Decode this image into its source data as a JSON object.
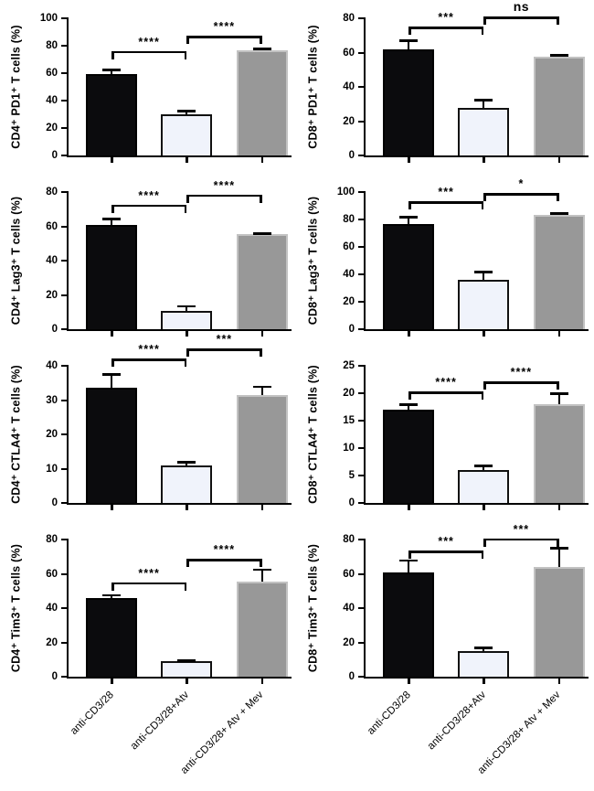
{
  "categories": [
    "anti-CD3/28",
    "anti-CD3/28+Atv",
    "anti-CD3/28+ Atv + Mev"
  ],
  "palette": {
    "black": {
      "fill": "#0b0b0d",
      "border": "#000000"
    },
    "white": {
      "fill": "#f0f3fb",
      "border": "#111111"
    },
    "gray": {
      "fill": "#989898",
      "border": "#c2c2c2"
    }
  },
  "bar_order": [
    "black",
    "white",
    "gray"
  ],
  "chart_data": [
    {
      "type": "bar",
      "ylabel": "CD4⁺ PD1⁺ T cells (%)",
      "ylim": [
        0,
        100
      ],
      "ystep": 20,
      "categories": [
        "anti-CD3/28",
        "anti-CD3/28+Atv",
        "anti-CD3/28+ Atv + Mev"
      ],
      "values": [
        59.5,
        30,
        77
      ],
      "errors": [
        3,
        2.5,
        1
      ],
      "significance": [
        {
          "between": [
            0,
            1
          ],
          "label": "****",
          "y": 75
        },
        {
          "between": [
            1,
            2
          ],
          "label": "****",
          "y": 86
        }
      ],
      "show_xlabels": false
    },
    {
      "type": "bar",
      "ylabel": "CD8⁺ PD1⁺ T cells (%)",
      "ylim": [
        0,
        80
      ],
      "ystep": 20,
      "categories": [
        "anti-CD3/28",
        "anti-CD3/28+Atv",
        "anti-CD3/28+ Atv + Mev"
      ],
      "values": [
        62,
        27.5,
        57.5
      ],
      "errors": [
        5,
        5,
        1
      ],
      "significance": [
        {
          "between": [
            0,
            1
          ],
          "label": "***",
          "y": 74
        },
        {
          "between": [
            1,
            2
          ],
          "label": "ns",
          "y": 80
        }
      ],
      "show_xlabels": false
    },
    {
      "type": "bar",
      "ylabel": "CD4⁺ Lag3⁺ T cells (%)",
      "ylim": [
        0,
        80
      ],
      "ystep": 20,
      "categories": [
        "anti-CD3/28",
        "anti-CD3/28+Atv",
        "anti-CD3/28+ Atv + Mev"
      ],
      "values": [
        61,
        10.5,
        55.5
      ],
      "errors": [
        3.5,
        3,
        0.5
      ],
      "significance": [
        {
          "between": [
            0,
            1
          ],
          "label": "****",
          "y": 71.5
        },
        {
          "between": [
            1,
            2
          ],
          "label": "****",
          "y": 77.5
        }
      ],
      "show_xlabels": false
    },
    {
      "type": "bar",
      "ylabel": "CD8⁺ Lag3⁺ T cells (%)",
      "ylim": [
        0,
        100
      ],
      "ystep": 20,
      "categories": [
        "anti-CD3/28",
        "anti-CD3/28+Atv",
        "anti-CD3/28+ Atv + Mev"
      ],
      "values": [
        77,
        36,
        83.5
      ],
      "errors": [
        5,
        6,
        1
      ],
      "significance": [
        {
          "between": [
            0,
            1
          ],
          "label": "***",
          "y": 92
        },
        {
          "between": [
            1,
            2
          ],
          "label": "*",
          "y": 98
        }
      ],
      "show_xlabels": false
    },
    {
      "type": "bar",
      "ylabel": "CD4⁺ CTLA4⁺ T cells (%)",
      "ylim": [
        0,
        40
      ],
      "ystep": 10,
      "categories": [
        "anti-CD3/28",
        "anti-CD3/28+Atv",
        "anti-CD3/28+ Atv + Mev"
      ],
      "values": [
        33.5,
        11,
        31.5
      ],
      "errors": [
        4,
        1,
        2.5
      ],
      "significance": [
        {
          "between": [
            0,
            1
          ],
          "label": "****",
          "y": 41.5
        },
        {
          "between": [
            1,
            2
          ],
          "label": "***",
          "y": 44.5
        }
      ],
      "show_xlabels": false
    },
    {
      "type": "bar",
      "ylabel": "CD8⁺ CTLA4⁺ T cells (%)",
      "ylim": [
        0,
        25
      ],
      "ystep": 5,
      "categories": [
        "anti-CD3/28",
        "anti-CD3/28+Atv",
        "anti-CD3/28+ Atv + Mev"
      ],
      "values": [
        17,
        6,
        18
      ],
      "errors": [
        1,
        0.8,
        2
      ],
      "significance": [
        {
          "between": [
            0,
            1
          ],
          "label": "****",
          "y": 20
        },
        {
          "between": [
            1,
            2
          ],
          "label": "****",
          "y": 21.8
        }
      ],
      "show_xlabels": false
    },
    {
      "type": "bar",
      "ylabel": "CD4⁺ Tim3⁺ T cells (%)",
      "ylim": [
        0,
        80
      ],
      "ystep": 20,
      "categories": [
        "anti-CD3/28",
        "anti-CD3/28+Atv",
        "anti-CD3/28+ Atv + Mev"
      ],
      "values": [
        46,
        9,
        55.5
      ],
      "errors": [
        1.5,
        0.5,
        7
      ],
      "significance": [
        {
          "between": [
            0,
            1
          ],
          "label": "****",
          "y": 54
        },
        {
          "between": [
            1,
            2
          ],
          "label": "****",
          "y": 67.5
        }
      ],
      "show_xlabels": true
    },
    {
      "type": "bar",
      "ylabel": "CD8⁺ Tim3⁺ T cells (%)",
      "ylim": [
        0,
        80
      ],
      "ystep": 20,
      "categories": [
        "anti-CD3/28",
        "anti-CD3/28+Atv",
        "anti-CD3/28+ Atv + Mev"
      ],
      "values": [
        61,
        15,
        64
      ],
      "errors": [
        7,
        2,
        11
      ],
      "significance": [
        {
          "between": [
            0,
            1
          ],
          "label": "***",
          "y": 72.5
        },
        {
          "between": [
            1,
            2
          ],
          "label": "***",
          "y": 79.5
        }
      ],
      "show_xlabels": true
    }
  ]
}
